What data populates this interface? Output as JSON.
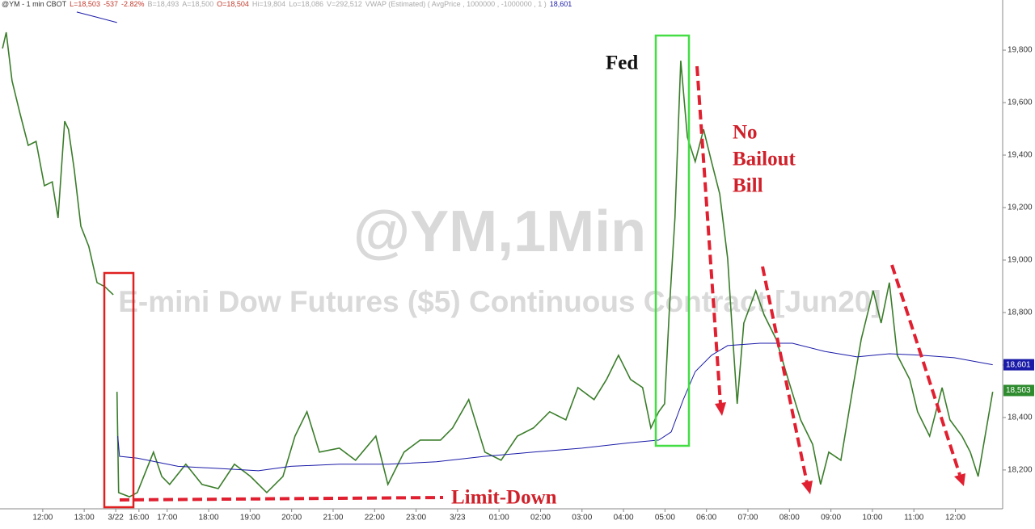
{
  "chart_data": {
    "type": "line",
    "header": [
      {
        "text": "@YM - 1 min CBOT",
        "color": "#333333"
      },
      {
        "text": "L=18,503",
        "color": "#c0392b"
      },
      {
        "text": "-537",
        "color": "#c0392b"
      },
      {
        "text": "-2.82%",
        "color": "#c0392b"
      },
      {
        "text": "B=18,493",
        "color": "#aaaaaa"
      },
      {
        "text": "A=18,500",
        "color": "#aaaaaa"
      },
      {
        "text": "O=18,504",
        "color": "#c0392b"
      },
      {
        "text": "Hi=19,804",
        "color": "#aaaaaa"
      },
      {
        "text": "Lo=18,086",
        "color": "#aaaaaa"
      },
      {
        "text": "V=292,512",
        "color": "#aaaaaa"
      },
      {
        "text": "VWAP (Estimated) ( AvgPrice , 1000000 , -1000000 , 1 )",
        "color": "#aaaaaa"
      },
      {
        "text": "18,601",
        "color": "#1a1aa8"
      }
    ],
    "watermark": "@YM,1Min",
    "watermark_subtitle": "E-mini Dow Futures ($5) Continuous Contract [Jun20]",
    "annotations": {
      "fed": "Fed",
      "no_bailout": [
        "No",
        "Bailout",
        "Bill"
      ],
      "limit_down": "Limit-Down"
    },
    "xlim": [
      -1.03,
      23.14
    ],
    "xticks": [
      {
        "value": 0,
        "label": "12:00"
      },
      {
        "value": 1,
        "label": "13:00"
      },
      {
        "value": 1.76,
        "label": "3/22"
      },
      {
        "value": 2.32,
        "label": "16:00"
      },
      {
        "value": 3,
        "label": "17:00"
      },
      {
        "value": 4,
        "label": "18:00"
      },
      {
        "value": 5,
        "label": "19:00"
      },
      {
        "value": 6,
        "label": "20:00"
      },
      {
        "value": 7,
        "label": "21:00"
      },
      {
        "value": 8,
        "label": "22:00"
      },
      {
        "value": 9,
        "label": "23:00"
      },
      {
        "value": 10,
        "label": "3/23"
      },
      {
        "value": 11,
        "label": "01:00"
      },
      {
        "value": 12,
        "label": "02:00"
      },
      {
        "value": 13,
        "label": "03:00"
      },
      {
        "value": 14,
        "label": "04:00"
      },
      {
        "value": 15,
        "label": "05:00"
      },
      {
        "value": 16,
        "label": "06:00"
      },
      {
        "value": 17,
        "label": "07:00"
      },
      {
        "value": 18,
        "label": "08:00"
      },
      {
        "value": 19,
        "label": "09:00"
      },
      {
        "value": 20,
        "label": "10:00"
      },
      {
        "value": 21,
        "label": "11:00"
      },
      {
        "value": 22,
        "label": "12:00"
      }
    ],
    "ylim": [
      18052,
      19991
    ],
    "yticks": [
      {
        "value": 18200,
        "label": "18,200"
      },
      {
        "value": 18400,
        "label": "18,400"
      },
      {
        "value": 18600,
        "label": "18,600"
      },
      {
        "value": 18800,
        "label": "18,800"
      },
      {
        "value": 19000,
        "label": "19,000"
      },
      {
        "value": 19200,
        "label": "19,200"
      },
      {
        "value": 19400,
        "label": "19,400"
      },
      {
        "value": 19600,
        "label": "19,600"
      },
      {
        "value": 19800,
        "label": "19,800"
      }
    ],
    "series": [
      {
        "color": "#3a7d2a",
        "x": [
          -0.97,
          -0.88,
          -0.74,
          -0.55,
          -0.35,
          -0.16,
          0.04,
          0.23,
          0.37,
          0.53,
          0.62,
          0.76,
          0.92,
          1.11,
          1.31,
          1.5,
          1.7,
          1.73,
          1.79,
          1.83,
          2.09,
          2.28,
          2.67,
          2.87,
          3.06,
          3.45,
          3.84,
          4.23,
          4.62,
          5.01,
          5.4,
          5.79,
          6.08,
          6.37,
          6.67,
          7.15,
          7.54,
          8.03,
          8.32,
          8.71,
          9.1,
          9.59,
          9.88,
          10.27,
          10.66,
          11.05,
          11.44,
          11.83,
          12.22,
          12.61,
          12.9,
          13.29,
          13.59,
          13.88,
          14.17,
          14.46,
          14.66,
          14.85,
          14.99,
          15.11,
          15.24,
          15.38,
          15.54,
          15.73,
          15.93,
          16.12,
          16.32,
          16.51,
          16.61,
          16.74,
          16.9,
          17.19,
          17.39,
          17.68,
          17.97,
          18.27,
          18.56,
          18.75,
          18.95,
          19.24,
          19.53,
          19.73,
          20.02,
          20.21,
          20.41,
          20.6,
          20.9,
          21.09,
          21.38,
          21.68,
          21.87,
          22.16,
          22.36,
          22.55,
          22.75,
          22.9
        ],
        "values": [
          19806,
          19868,
          19683,
          19560,
          19437,
          19452,
          19283,
          19298,
          19160,
          19529,
          19498,
          19345,
          19129,
          19052,
          18914,
          18898,
          18868,
          null,
          18498,
          18114,
          18098,
          18114,
          18268,
          18175,
          18145,
          18222,
          18145,
          18129,
          18222,
          18175,
          18114,
          18175,
          18329,
          18422,
          18268,
          18283,
          18237,
          18329,
          18145,
          18268,
          18314,
          18314,
          18360,
          18468,
          18268,
          18237,
          18329,
          18360,
          18422,
          18391,
          18514,
          18468,
          18545,
          18637,
          18545,
          18514,
          18360,
          18422,
          18452,
          18822,
          19160,
          19760,
          19468,
          19375,
          19498,
          19375,
          19252,
          19006,
          18760,
          18452,
          18760,
          18883,
          18791,
          18698,
          18545,
          18391,
          18298,
          18145,
          18268,
          18237,
          18514,
          18698,
          18883,
          18760,
          18914,
          18637,
          18545,
          18422,
          18329,
          18514,
          18391,
          18329,
          18268,
          18175,
          18360,
          18498
        ]
      },
      {
        "color": "#1a1aa8",
        "x": [
          0.82,
          1.31,
          1.79,
          1.8,
          1.81,
          1.85,
          2.28,
          3.26,
          4.23,
          5.2,
          5.98,
          7.15,
          8.32,
          9.49,
          10.66,
          11.83,
          13.0,
          14.17,
          14.85,
          15.15,
          15.44,
          15.73,
          16.12,
          16.51,
          17.29,
          18.07,
          18.85,
          19.63,
          20.41,
          21.19,
          21.97,
          22.9
        ],
        "values": [
          19945,
          19925,
          19905,
          null,
          18329,
          18252,
          18245,
          18214,
          18206,
          18197,
          18214,
          18222,
          18222,
          18231,
          18252,
          18268,
          18283,
          18304,
          18314,
          18345,
          18468,
          18575,
          18637,
          18674,
          18683,
          18683,
          18652,
          18631,
          18643,
          18637,
          18628,
          18601
        ]
      }
    ],
    "price_tags": [
      {
        "value": 18601,
        "label": "18,601",
        "color": "#1a1aa8"
      },
      {
        "value": 18503,
        "label": "18,503",
        "color": "#2e8b2e"
      }
    ]
  }
}
